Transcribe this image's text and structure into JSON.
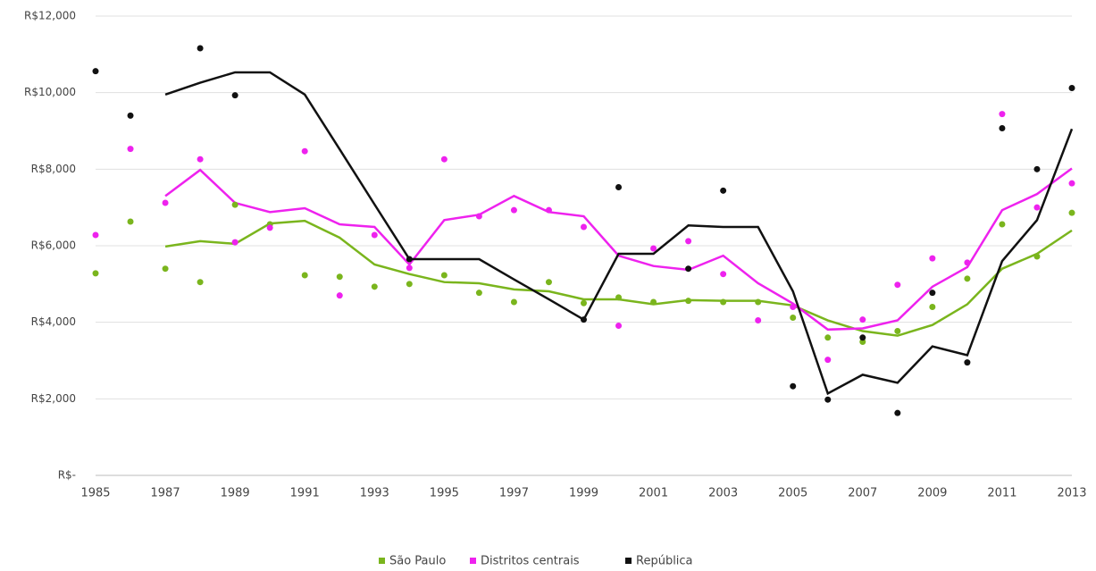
{
  "chart_data": {
    "type": "scatter",
    "x": [
      1985,
      1986,
      1987,
      1988,
      1989,
      1990,
      1991,
      1992,
      1993,
      1994,
      1995,
      1996,
      1997,
      1998,
      1999,
      2000,
      2001,
      2002,
      2003,
      2004,
      2005,
      2006,
      2007,
      2008,
      2009,
      2010,
      2011,
      2012,
      2013
    ],
    "series": [
      {
        "name": "São Paulo",
        "color": "#7ab51d",
        "values": [
          5280,
          6630,
          5400,
          5050,
          7070,
          6560,
          5230,
          5190,
          4930,
          5000,
          5230,
          4770,
          4530,
          5050,
          4500,
          4650,
          4530,
          4560,
          4530,
          4530,
          4120,
          3600,
          3490,
          3770,
          4400,
          5140,
          6560,
          5720,
          6860
        ],
        "trend": [
          null,
          null,
          5980,
          6120,
          6050,
          6580,
          6650,
          6210,
          5510,
          5260,
          5050,
          5020,
          4860,
          4810,
          4600,
          4600,
          4470,
          4580,
          4560,
          4560,
          4440,
          4050,
          3770,
          3650,
          3930,
          4470,
          5400,
          5790,
          6400
        ]
      },
      {
        "name": "Distritos centrais",
        "color": "#ee22ee",
        "values": [
          6280,
          8530,
          7120,
          8260,
          6090,
          6470,
          8470,
          4700,
          6280,
          5420,
          8260,
          6770,
          6930,
          6930,
          6490,
          3910,
          5930,
          6120,
          5260,
          4050,
          4400,
          3020,
          4070,
          4980,
          5670,
          5560,
          9440,
          7000,
          7630
        ],
        "trend": [
          null,
          null,
          7300,
          7980,
          7120,
          6880,
          6980,
          6560,
          6490,
          5510,
          6670,
          6810,
          7300,
          6880,
          6770,
          5740,
          5470,
          5370,
          5740,
          5020,
          4490,
          3810,
          3840,
          4050,
          4930,
          5440,
          6930,
          7350,
          8020
        ]
      },
      {
        "name": "República",
        "color": "#111111",
        "values": [
          10560,
          9400,
          null,
          11160,
          9930,
          null,
          null,
          null,
          null,
          5650,
          null,
          null,
          null,
          null,
          4070,
          7530,
          null,
          5400,
          7440,
          null,
          2330,
          1980,
          3600,
          1630,
          4770,
          2950,
          9070,
          8000,
          10120
        ],
        "trend": [
          null,
          null,
          9950,
          10260,
          10530,
          10530,
          9950,
          8520,
          7080,
          5650,
          5650,
          5650,
          5120,
          4600,
          4070,
          5790,
          5790,
          6530,
          6490,
          6490,
          4810,
          2140,
          2630,
          2420,
          3370,
          3140,
          5600,
          6670,
          9050
        ]
      }
    ],
    "xlim": [
      1985,
      2013
    ],
    "xticks": [
      1985,
      1987,
      1989,
      1991,
      1993,
      1995,
      1997,
      1999,
      2001,
      2003,
      2005,
      2007,
      2009,
      2011,
      2013
    ],
    "ylim": [
      0,
      12000
    ],
    "yticks": [
      {
        "value": 0,
        "label": "R$-"
      },
      {
        "value": 2000,
        "label": "R$2,000"
      },
      {
        "value": 4000,
        "label": "R$4,000"
      },
      {
        "value": 6000,
        "label": "R$6,000"
      },
      {
        "value": 8000,
        "label": "R$8,000"
      },
      {
        "value": 10000,
        "label": "R$10,000"
      },
      {
        "value": 12000,
        "label": "R$12,000"
      }
    ],
    "grid": true,
    "legend": "bottom"
  }
}
